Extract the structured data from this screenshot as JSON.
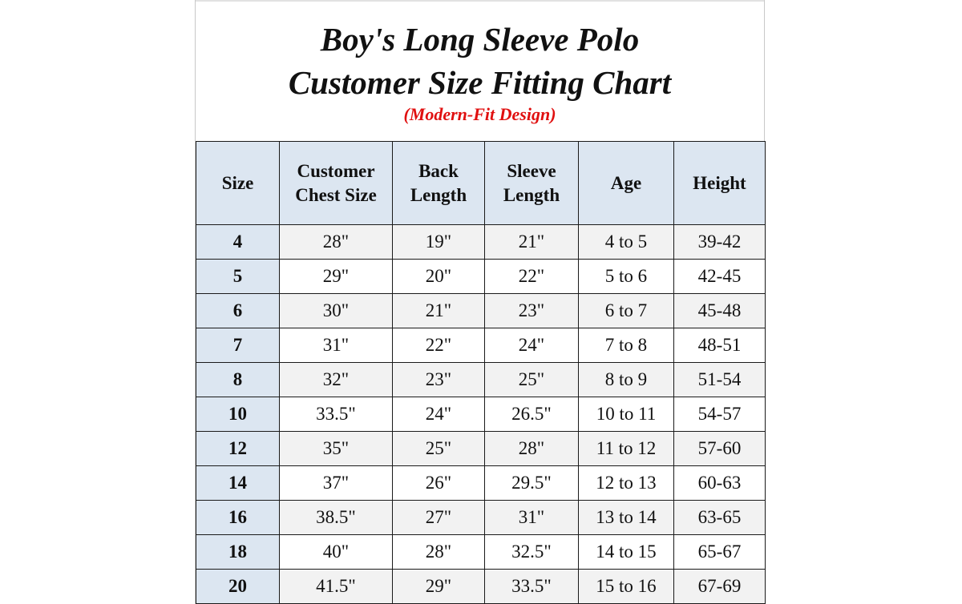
{
  "title": {
    "line1": "Boy's Long Sleeve Polo",
    "line2": "Customer Size Fitting Chart",
    "subtitle": "(Modern-Fit Design)"
  },
  "colors": {
    "header_fill": "#dce6f1",
    "subtitle_red": "#e01010",
    "stripe_gray": "#f2f2f2"
  },
  "table": {
    "headers": [
      [
        "Size"
      ],
      [
        "Customer",
        "Chest Size"
      ],
      [
        "Back",
        "Length"
      ],
      [
        "Sleeve",
        "Length"
      ],
      [
        "Age"
      ],
      [
        "Height"
      ]
    ],
    "rows": [
      [
        "4",
        "28\"",
        "19\"",
        "21\"",
        "4 to 5",
        "39-42"
      ],
      [
        "5",
        "29\"",
        "20\"",
        "22\"",
        "5 to 6",
        "42-45"
      ],
      [
        "6",
        "30\"",
        "21\"",
        "23\"",
        "6 to 7",
        "45-48"
      ],
      [
        "7",
        "31\"",
        "22\"",
        "24\"",
        "7 to 8",
        "48-51"
      ],
      [
        "8",
        "32\"",
        "23\"",
        "25\"",
        "8 to 9",
        "51-54"
      ],
      [
        "10",
        "33.5\"",
        "24\"",
        "26.5\"",
        "10 to 11",
        "54-57"
      ],
      [
        "12",
        "35\"",
        "25\"",
        "28\"",
        "11 to 12",
        "57-60"
      ],
      [
        "14",
        "37\"",
        "26\"",
        "29.5\"",
        "12 to 13",
        "60-63"
      ],
      [
        "16",
        "38.5\"",
        "27\"",
        "31\"",
        "13 to 14",
        "63-65"
      ],
      [
        "18",
        "40\"",
        "28\"",
        "32.5\"",
        "14 to 15",
        "65-67"
      ],
      [
        "20",
        "41.5\"",
        "29\"",
        "33.5\"",
        "15 to 16",
        "67-69"
      ]
    ]
  }
}
